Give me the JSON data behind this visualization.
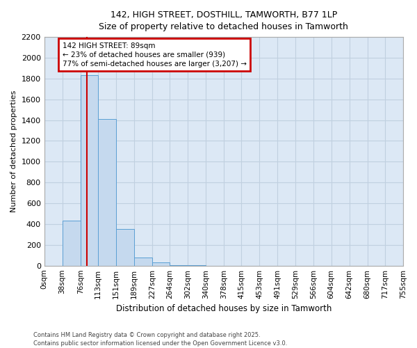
{
  "title_line1": "142, HIGH STREET, DOSTHILL, TAMWORTH, B77 1LP",
  "title_line2": "Size of property relative to detached houses in Tamworth",
  "xlabel": "Distribution of detached houses by size in Tamworth",
  "ylabel": "Number of detached properties",
  "bin_labels": [
    "0sqm",
    "38sqm",
    "76sqm",
    "113sqm",
    "151sqm",
    "189sqm",
    "227sqm",
    "264sqm",
    "302sqm",
    "340sqm",
    "378sqm",
    "415sqm",
    "453sqm",
    "491sqm",
    "529sqm",
    "566sqm",
    "604sqm",
    "642sqm",
    "680sqm",
    "717sqm",
    "755sqm"
  ],
  "bin_edges": [
    0,
    38,
    76,
    113,
    151,
    189,
    227,
    264,
    302,
    340,
    378,
    415,
    453,
    491,
    529,
    566,
    604,
    642,
    680,
    717,
    755
  ],
  "bar_heights": [
    0,
    430,
    1830,
    1410,
    350,
    80,
    30,
    5,
    2,
    1,
    0,
    0,
    0,
    0,
    0,
    0,
    0,
    0,
    0,
    0
  ],
  "bar_color": "#c5d9ee",
  "bar_edge_color": "#5a9fd4",
  "property_size": 89,
  "vline_color": "#cc0000",
  "annotation_text": "142 HIGH STREET: 89sqm\n← 23% of detached houses are smaller (939)\n77% of semi-detached houses are larger (3,207) →",
  "annotation_box_color": "#cc0000",
  "ylim": [
    0,
    2200
  ],
  "yticks": [
    0,
    200,
    400,
    600,
    800,
    1000,
    1200,
    1400,
    1600,
    1800,
    2000,
    2200
  ],
  "grid_color": "#c0d0e0",
  "plot_bg_color": "#dce8f5",
  "fig_bg_color": "#ffffff",
  "footer_line1": "Contains HM Land Registry data © Crown copyright and database right 2025.",
  "footer_line2": "Contains public sector information licensed under the Open Government Licence v3.0."
}
